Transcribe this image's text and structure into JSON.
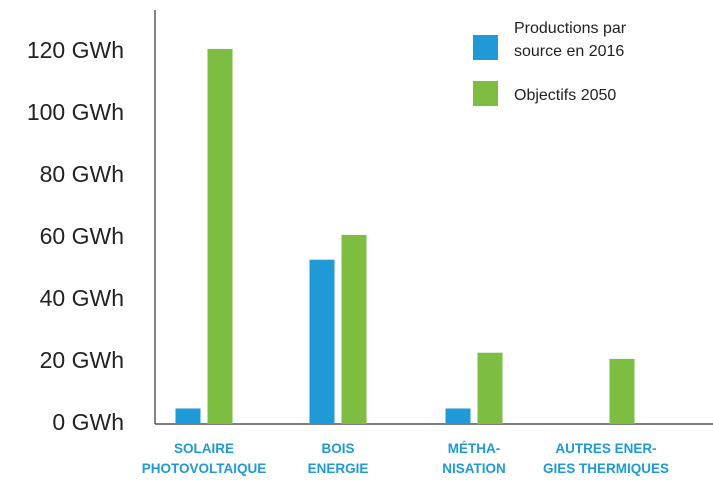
{
  "chart_data": {
    "type": "bar",
    "categories": [
      [
        "SOLAIRE",
        "PHOTOVOLTAIQUE"
      ],
      [
        "BOIS",
        "ENERGIE"
      ],
      [
        "MÉTHA-",
        "NISATION"
      ],
      [
        "AUTRES ENER-",
        "GIES THERMIQUES"
      ]
    ],
    "series": [
      {
        "name": [
          "Productions par",
          "source en 2016"
        ],
        "color": "#1f9ad6",
        "values": [
          5,
          53,
          5,
          0
        ]
      },
      {
        "name": [
          "Objectifs 2050"
        ],
        "color": "#7dbd42",
        "values": [
          121,
          61,
          23,
          21
        ]
      }
    ],
    "yticks": [
      "0 GWh",
      "20 GWh",
      "40 GWh",
      "60 GWh",
      "80 GWh",
      "100 GWh",
      "120 GWh"
    ],
    "ylim": [
      0,
      130
    ],
    "grid": false,
    "legend_position": "top-right",
    "title": "",
    "xlabel": "",
    "ylabel": ""
  }
}
